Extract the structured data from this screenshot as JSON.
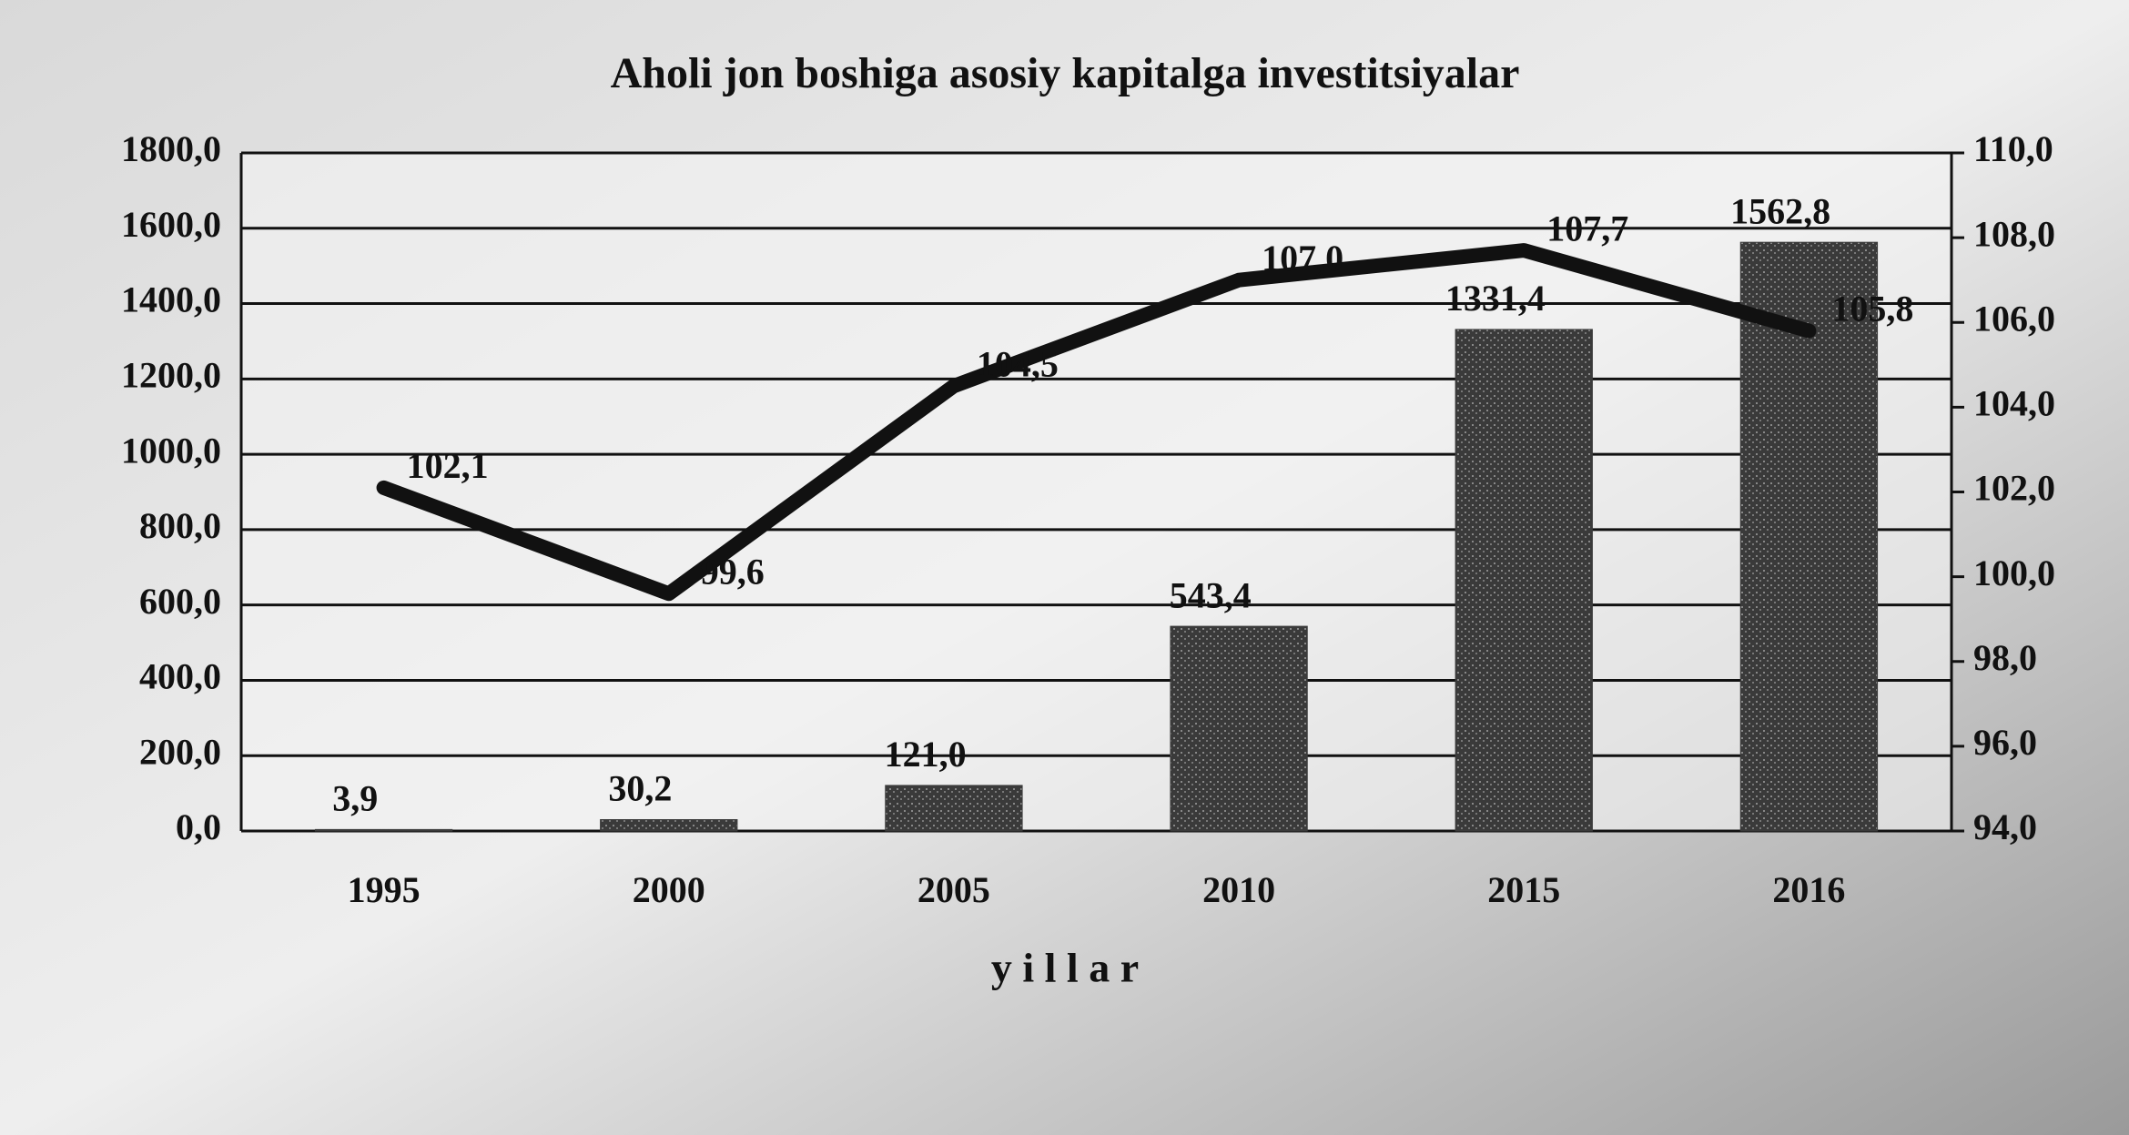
{
  "chart_data": {
    "type": "bar",
    "title": "Aholi jon boshiga asosiy kapitalga investitsiyalar",
    "x_label": "y i l l a r",
    "categories": [
      "1995",
      "2000",
      "2005",
      "2010",
      "2015",
      "2016"
    ],
    "series": [
      {
        "type": "bar",
        "color": "#3a3a3a",
        "values": [
          3.9,
          30.2,
          121.0,
          543.4,
          1331.4,
          1562.8
        ],
        "value_labels": [
          "3,9",
          "30,2",
          "121,0",
          "543,4",
          "1331,4",
          "1562,8"
        ]
      },
      {
        "type": "line",
        "axis": "y2",
        "color": "#111111",
        "values": [
          102.1,
          99.6,
          104.5,
          107.0,
          107.7,
          105.8
        ],
        "value_labels": [
          "102,1",
          "99,6",
          "104,5",
          "107,0",
          "107,7",
          "105,8"
        ]
      }
    ],
    "ylim": [
      0,
      1800
    ],
    "yticks": [
      {
        "value": 0,
        "label": "0,0"
      },
      {
        "value": 200,
        "label": "200,0"
      },
      {
        "value": 400,
        "label": "400,0"
      },
      {
        "value": 600,
        "label": "600,0"
      },
      {
        "value": 800,
        "label": "800,0"
      },
      {
        "value": 1000,
        "label": "1000,0"
      },
      {
        "value": 1200,
        "label": "1200,0"
      },
      {
        "value": 1400,
        "label": "1400,0"
      },
      {
        "value": 1600,
        "label": "1600,0"
      },
      {
        "value": 1800,
        "label": "1800,0"
      }
    ],
    "y2lim": [
      94,
      110
    ],
    "y2ticks": [
      {
        "value": 94,
        "label": "94,0"
      },
      {
        "value": 96,
        "label": "96,0"
      },
      {
        "value": 98,
        "label": "98,0"
      },
      {
        "value": 100,
        "label": "100,0"
      },
      {
        "value": 102,
        "label": "102,0"
      },
      {
        "value": 104,
        "label": "104,0"
      },
      {
        "value": 106,
        "label": "106,0"
      },
      {
        "value": 108,
        "label": "108,0"
      },
      {
        "value": 110,
        "label": "110,0"
      }
    ],
    "grid": true
  }
}
